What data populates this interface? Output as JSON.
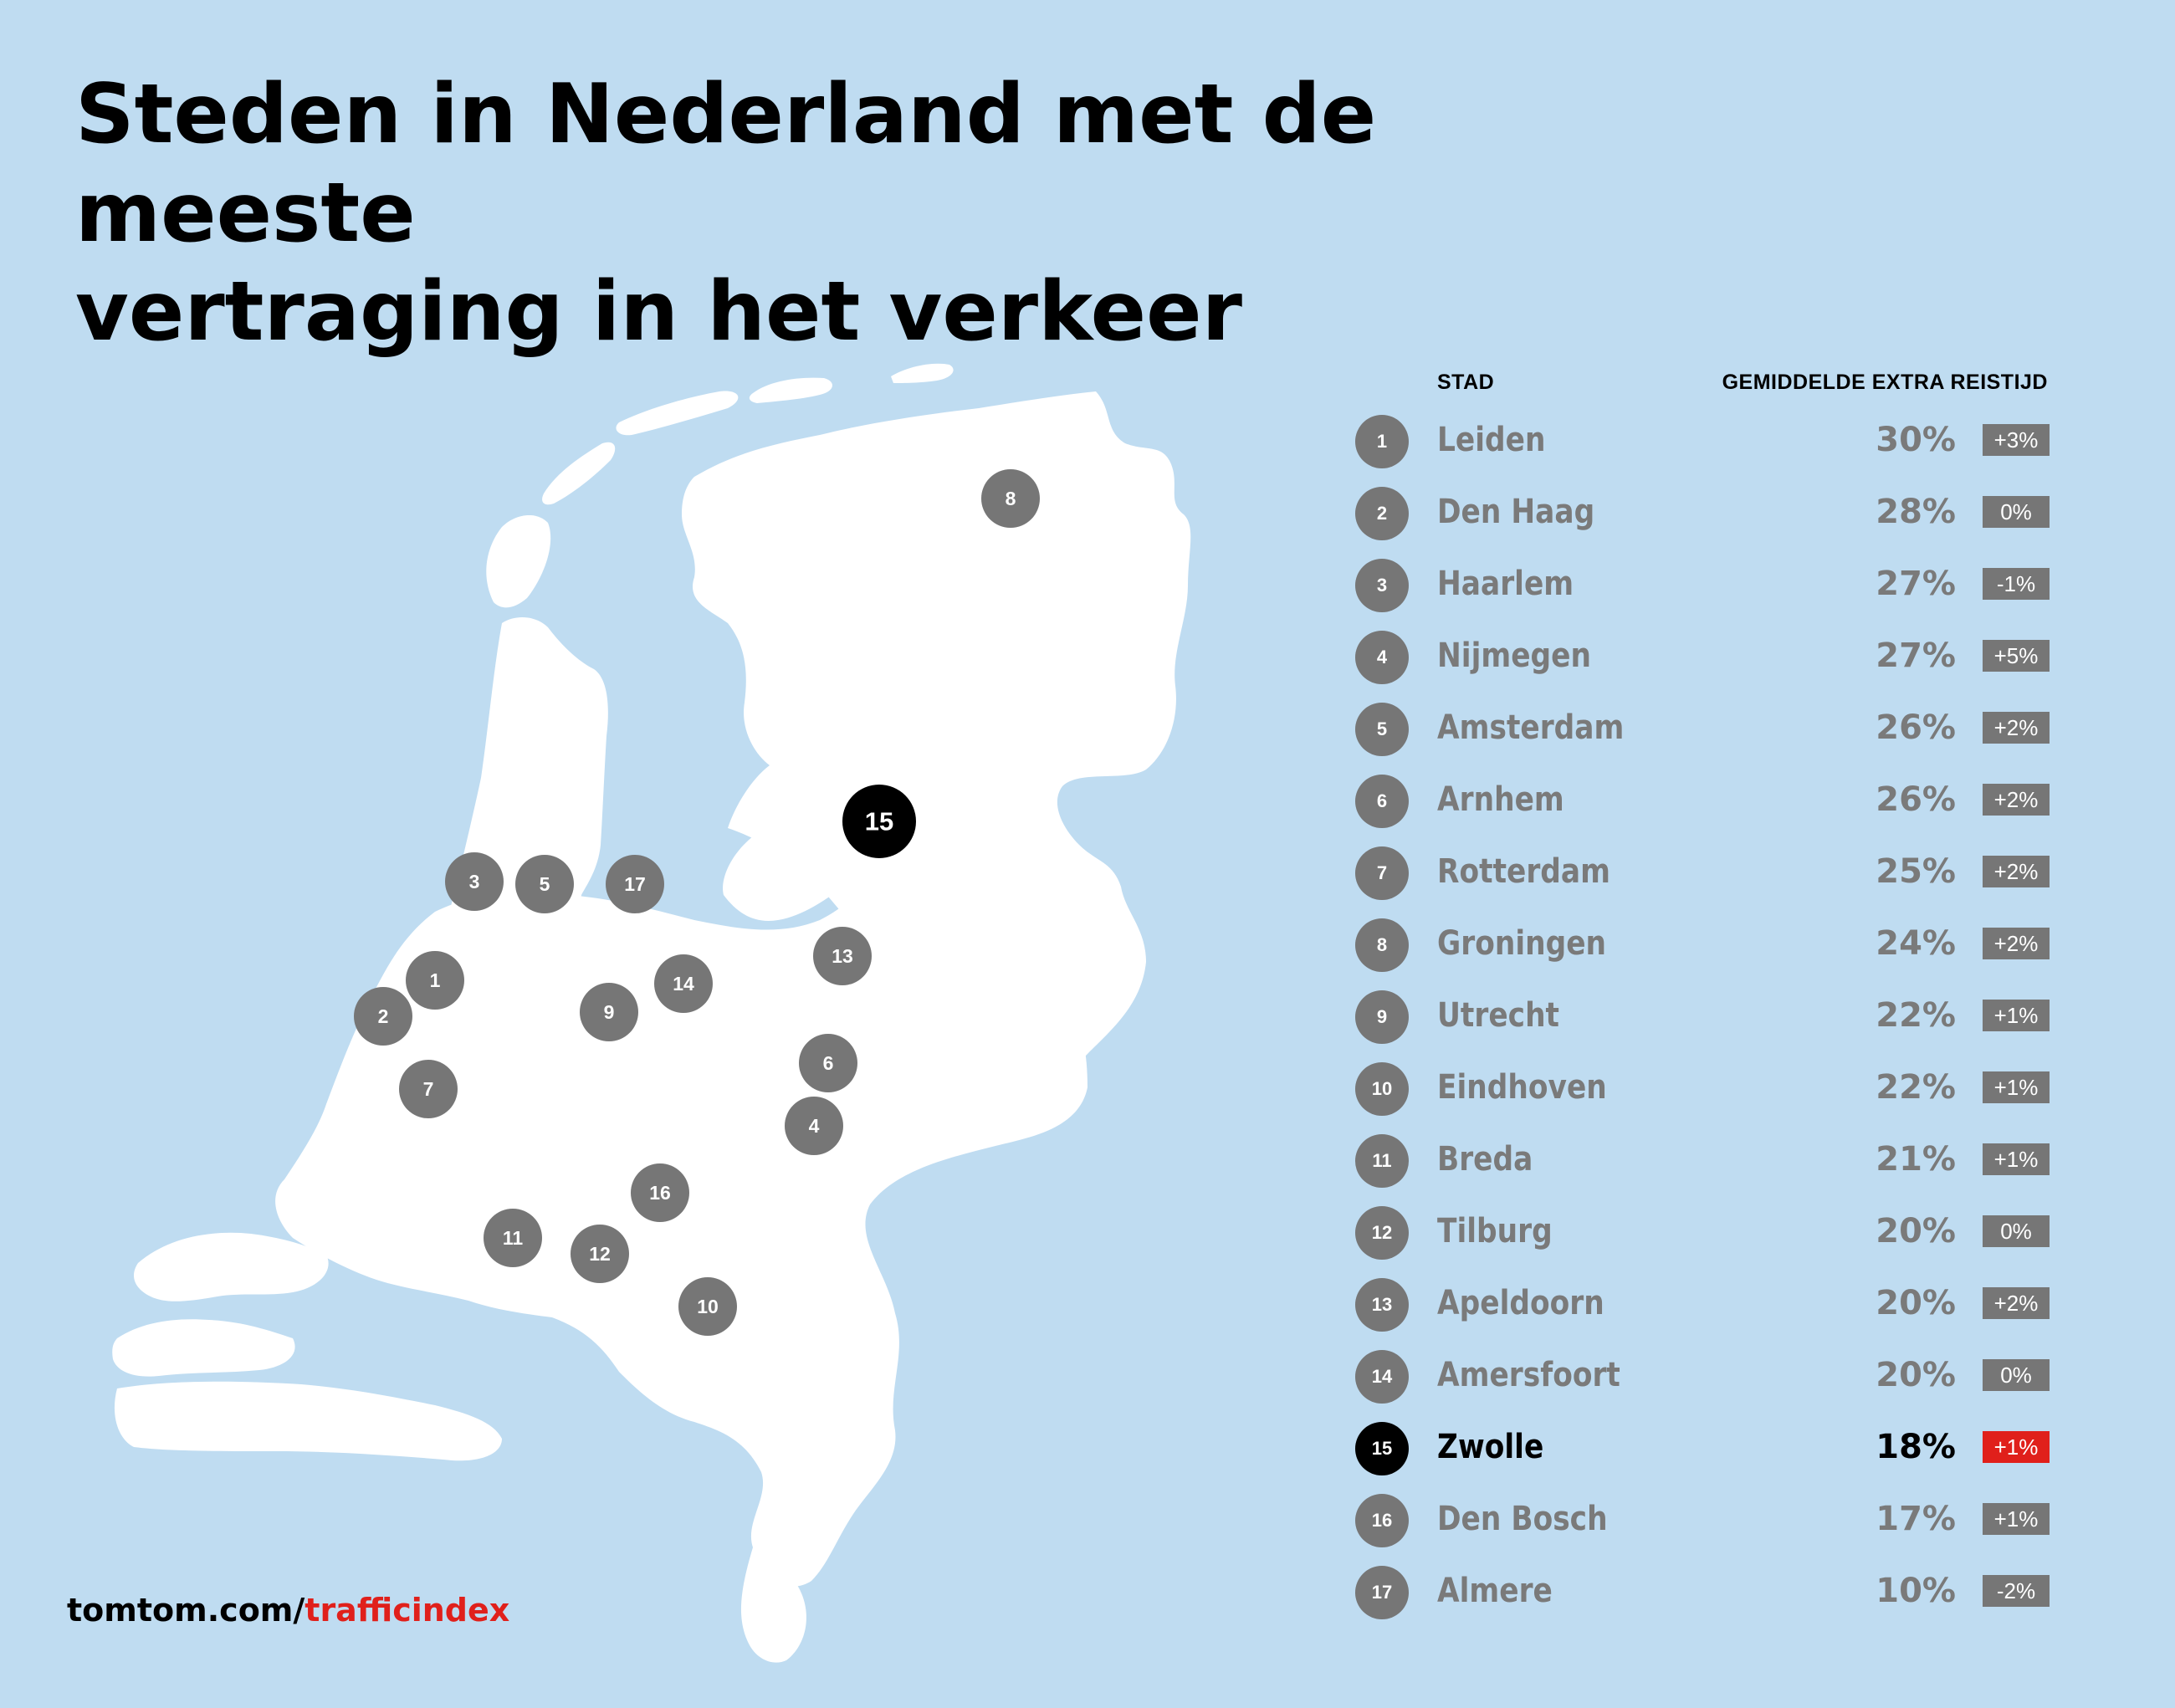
{
  "title": {
    "line1": "Steden in Nederland met de meeste",
    "line2": "vertraging in het verkeer"
  },
  "table": {
    "header_city": "STAD",
    "header_delay": "GEMIDDELDE EXTRA REISTIJD"
  },
  "cities": [
    {
      "rank": "1",
      "name": "Leiden",
      "delay": "30%",
      "change": "+3%"
    },
    {
      "rank": "2",
      "name": "Den Haag",
      "delay": "28%",
      "change": "0%"
    },
    {
      "rank": "3",
      "name": "Haarlem",
      "delay": "27%",
      "change": "-1%"
    },
    {
      "rank": "4",
      "name": "Nijmegen",
      "delay": "27%",
      "change": "+5%"
    },
    {
      "rank": "5",
      "name": "Amsterdam",
      "delay": "26%",
      "change": "+2%"
    },
    {
      "rank": "6",
      "name": "Arnhem",
      "delay": "26%",
      "change": "+2%"
    },
    {
      "rank": "7",
      "name": "Rotterdam",
      "delay": "25%",
      "change": "+2%"
    },
    {
      "rank": "8",
      "name": "Groningen",
      "delay": "24%",
      "change": "+2%"
    },
    {
      "rank": "9",
      "name": "Utrecht",
      "delay": "22%",
      "change": "+1%"
    },
    {
      "rank": "10",
      "name": "Eindhoven",
      "delay": "22%",
      "change": "+1%"
    },
    {
      "rank": "11",
      "name": "Breda",
      "delay": "21%",
      "change": "+1%"
    },
    {
      "rank": "12",
      "name": "Tilburg",
      "delay": "20%",
      "change": "0%"
    },
    {
      "rank": "13",
      "name": "Apeldoorn",
      "delay": "20%",
      "change": "+2%"
    },
    {
      "rank": "14",
      "name": "Amersfoort",
      "delay": "20%",
      "change": "0%"
    },
    {
      "rank": "15",
      "name": "Zwolle",
      "delay": "18%",
      "change": "+1%",
      "highlight": true
    },
    {
      "rank": "16",
      "name": "Den Bosch",
      "delay": "17%",
      "change": "+1%"
    },
    {
      "rank": "17",
      "name": "Almere",
      "delay": "10%",
      "change": "-2%"
    }
  ],
  "footer": {
    "domain": "tomtom.com/",
    "path": "trafficindex"
  },
  "colors": {
    "background": "#bfdcf1",
    "land": "#ffffff",
    "marker": "#767676",
    "highlight": "#000000",
    "accent": "#e0201b"
  }
}
